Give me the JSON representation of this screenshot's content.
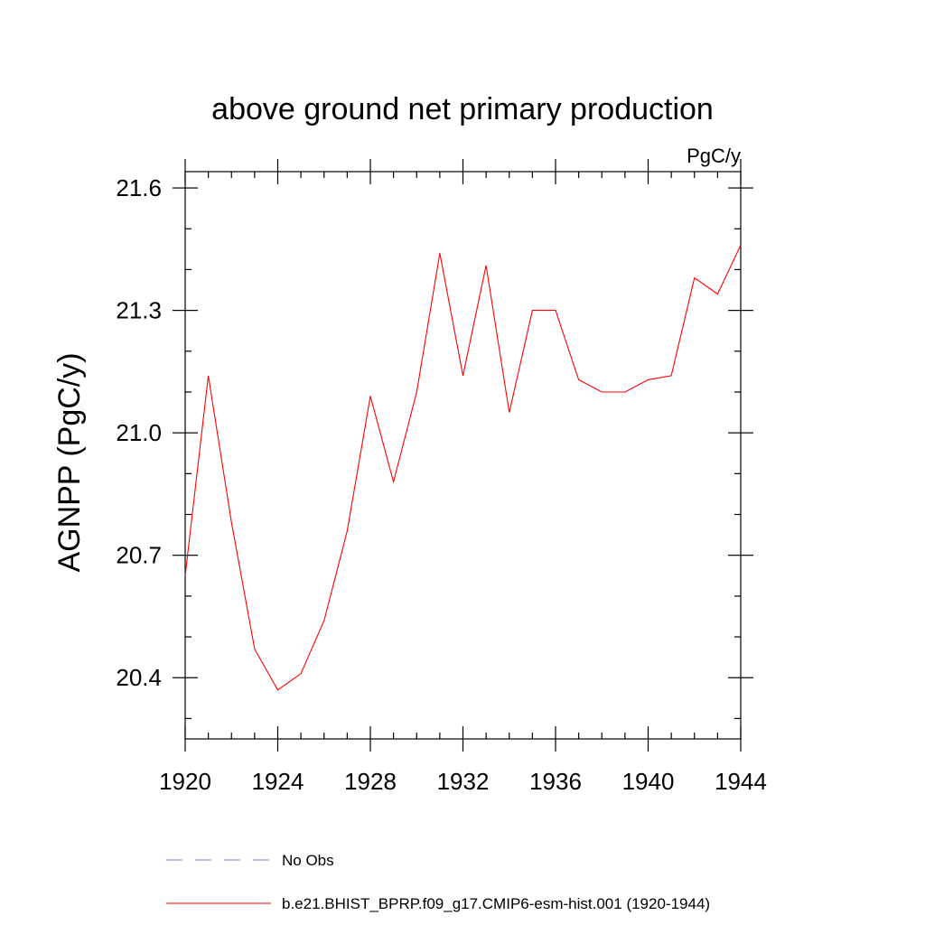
{
  "chart_data": {
    "type": "line",
    "title": "above ground net primary production",
    "units": "PgC/y",
    "ylabel": "AGNPP  (PgC/y)",
    "xlabel": "",
    "xlim": [
      1920,
      1944
    ],
    "ylim": [
      20.25,
      21.64
    ],
    "x_ticks": [
      {
        "value": 1920,
        "label": "1920"
      },
      {
        "value": 1924,
        "label": "1924"
      },
      {
        "value": 1928,
        "label": "1928"
      },
      {
        "value": 1932,
        "label": "1932"
      },
      {
        "value": 1936,
        "label": "1936"
      },
      {
        "value": 1940,
        "label": "1940"
      },
      {
        "value": 1944,
        "label": "1944"
      }
    ],
    "y_ticks": [
      {
        "value": 20.4,
        "label": "20.4"
      },
      {
        "value": 20.7,
        "label": "20.7"
      },
      {
        "value": 21.0,
        "label": "21.0"
      },
      {
        "value": 21.3,
        "label": "21.3"
      },
      {
        "value": 21.6,
        "label": "21.6"
      }
    ],
    "grid": false,
    "legend_position": "bottom",
    "series": [
      {
        "name": "b.e21.BHIST_BPRP.f09_g17.CMIP6-esm-hist.001 (1920-1944)",
        "color": "#ff0000",
        "style": "solid",
        "x": [
          1920,
          1921,
          1922,
          1923,
          1924,
          1925,
          1926,
          1927,
          1928,
          1929,
          1930,
          1931,
          1932,
          1933,
          1934,
          1935,
          1936,
          1937,
          1938,
          1939,
          1940,
          1941,
          1942,
          1943,
          1944
        ],
        "y": [
          20.65,
          21.14,
          20.78,
          20.47,
          20.37,
          20.41,
          20.54,
          20.76,
          21.09,
          20.88,
          21.1,
          21.44,
          21.14,
          21.41,
          21.05,
          21.3,
          21.3,
          21.13,
          21.1,
          21.1,
          21.13,
          21.14,
          21.38,
          21.34,
          21.46
        ]
      }
    ],
    "legend": [
      {
        "label": "No Obs",
        "color": "#8080cc",
        "style": "dashed"
      },
      {
        "label": "b.e21.BHIST_BPRP.f09_g17.CMIP6-esm-hist.001 (1920-1944)",
        "color": "#ff0000",
        "style": "solid"
      }
    ]
  }
}
